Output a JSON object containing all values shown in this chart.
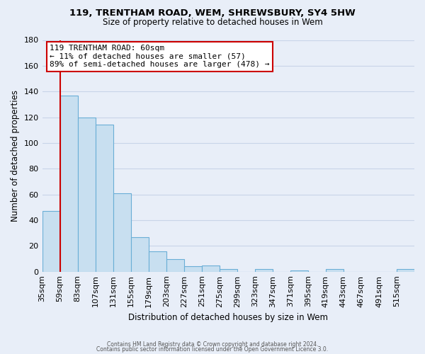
{
  "title": "119, TRENTHAM ROAD, WEM, SHREWSBURY, SY4 5HW",
  "subtitle": "Size of property relative to detached houses in Wem",
  "xlabel": "Distribution of detached houses by size in Wem",
  "ylabel": "Number of detached properties",
  "all_labels": [
    "35sqm",
    "59sqm",
    "83sqm",
    "107sqm",
    "131sqm",
    "155sqm",
    "179sqm",
    "203sqm",
    "227sqm",
    "251sqm",
    "275sqm",
    "299sqm",
    "323sqm",
    "347sqm",
    "371sqm",
    "395sqm",
    "419sqm",
    "443sqm",
    "467sqm",
    "491sqm",
    "515sqm"
  ],
  "all_values": [
    47,
    137,
    120,
    114,
    61,
    27,
    16,
    10,
    4,
    5,
    2,
    0,
    2,
    0,
    1,
    0,
    2,
    0,
    0,
    0,
    2
  ],
  "bar_color": "#c8dff0",
  "bar_edge_color": "#6aaed6",
  "vline_color": "#cc0000",
  "annotation_title": "119 TRENTHAM ROAD: 60sqm",
  "annotation_line1": "← 11% of detached houses are smaller (57)",
  "annotation_line2": "89% of semi-detached houses are larger (478) →",
  "annotation_box_color": "white",
  "annotation_box_edge": "#cc0000",
  "ylim": [
    0,
    180
  ],
  "yticks": [
    0,
    20,
    40,
    60,
    80,
    100,
    120,
    140,
    160,
    180
  ],
  "footer1": "Contains HM Land Registry data © Crown copyright and database right 2024.",
  "footer2": "Contains public sector information licensed under the Open Government Licence 3.0.",
  "background_color": "#e8eef8",
  "grid_color": "#c8d4e8"
}
